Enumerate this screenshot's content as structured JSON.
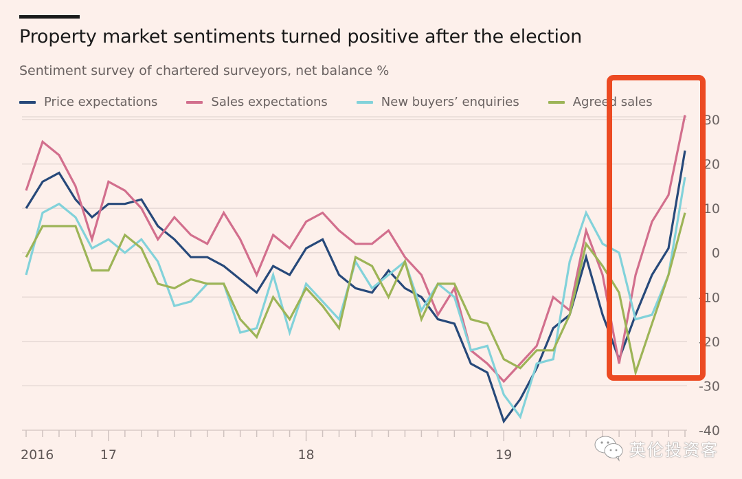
{
  "header": {
    "title": "Property market sentiments turned positive after the election",
    "subtitle": "Sentiment survey of chartered surveyors, net balance %"
  },
  "legend": [
    {
      "label": "Price expectations",
      "color": "#27497a"
    },
    {
      "label": "Sales expectations",
      "color": "#d26f8d"
    },
    {
      "label": "New buyers’ enquiries",
      "color": "#82d2da"
    },
    {
      "label": "Agreed sales",
      "color": "#9db457"
    }
  ],
  "highlight": {
    "color": "#ec4a22",
    "from_index": 36,
    "to_index": 40
  },
  "watermark": {
    "icon": "wechat-icon",
    "text": "英伦投资客"
  },
  "chart_data": {
    "type": "line",
    "title": "Property market sentiments turned positive after the election",
    "subtitle": "Sentiment survey of chartered surveyors, net balance %",
    "xlabel": "",
    "ylabel": "net balance %",
    "ylim": [
      -40,
      30
    ],
    "yticks": [
      30,
      20,
      10,
      0,
      -10,
      -20,
      -30,
      -40
    ],
    "ytick_labels": [
      "30",
      "20",
      "10",
      "0",
      "-10",
      "-20",
      "-30",
      "-40"
    ],
    "y_axis_side": "right",
    "grid": true,
    "legend_position": "top",
    "x_start": "2016-08",
    "x_end": "2019-12",
    "x_frequency": "monthly",
    "x_tick_labels": [
      {
        "label": "2016",
        "index": 0
      },
      {
        "label": "17",
        "index": 5
      },
      {
        "label": "18",
        "index": 17
      },
      {
        "label": "19",
        "index": 29
      }
    ],
    "series": [
      {
        "name": "Price expectations",
        "color": "#27497a",
        "values": [
          10,
          16,
          18,
          12,
          8,
          11,
          11,
          12,
          6,
          3,
          -1,
          -1,
          -3,
          -6,
          -9,
          -3,
          -5,
          1,
          3,
          -5,
          -8,
          -9,
          -4,
          -8,
          -10,
          -15,
          -16,
          -25,
          -27,
          -38,
          -33,
          -26,
          -17,
          -14,
          -1,
          -14,
          -24,
          -14,
          -5,
          1,
          23
        ]
      },
      {
        "name": "Sales expectations",
        "color": "#d26f8d",
        "values": [
          14,
          25,
          22,
          15,
          3,
          16,
          14,
          10,
          3,
          8,
          4,
          2,
          9,
          3,
          -5,
          4,
          1,
          7,
          9,
          5,
          2,
          2,
          5,
          -1,
          -5,
          -14,
          -8,
          -22,
          -25,
          -29,
          -25,
          -21,
          -10,
          -13,
          5,
          -5,
          -25,
          -5,
          7,
          13,
          31
        ]
      },
      {
        "name": "New buyers’ enquiries",
        "color": "#82d2da",
        "values": [
          -5,
          9,
          11,
          8,
          1,
          3,
          0,
          3,
          -2,
          -12,
          -11,
          -7,
          -7,
          -18,
          -17,
          -5,
          -18,
          -7,
          -11,
          -15,
          -2,
          -8,
          -5,
          -2,
          -13,
          -7,
          -10,
          -22,
          -21,
          -32,
          -37,
          -25,
          -24,
          -2,
          9,
          2,
          0,
          -15,
          -14,
          -5,
          17
        ]
      },
      {
        "name": "Agreed sales",
        "color": "#9db457",
        "values": [
          -1,
          6,
          6,
          6,
          -4,
          -4,
          4,
          1,
          -7,
          -8,
          -6,
          -7,
          -7,
          -15,
          -19,
          -10,
          -15,
          -8,
          -12,
          -17,
          -1,
          -3,
          -10,
          -2,
          -15,
          -7,
          -7,
          -15,
          -16,
          -24,
          -26,
          -22,
          -22,
          -14,
          2,
          -3,
          -9,
          -27,
          -16,
          -5,
          9
        ]
      }
    ]
  }
}
